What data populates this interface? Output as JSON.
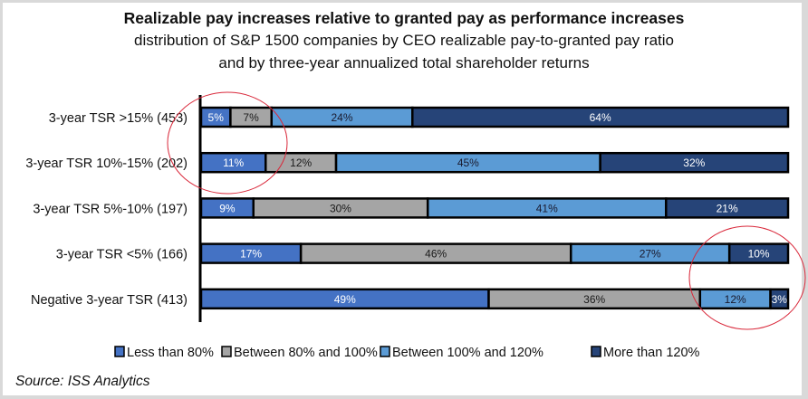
{
  "chart_data": {
    "type": "bar",
    "orientation": "horizontal",
    "stacked": true,
    "title": "Realizable pay increases relative to granted pay as performance increases",
    "subtitle_lines": [
      "distribution of S&P 1500 companies by CEO realizable pay-to-granted pay ratio",
      "and by three-year annualized total shareholder returns"
    ],
    "xlabel": "",
    "ylabel": "",
    "xlim": [
      0,
      100
    ],
    "grid": false,
    "legend_position": "bottom",
    "categories": [
      "3-year TSR >15% (453)",
      "3-year TSR 10%-15% (202)",
      "3-year TSR 5%-10% (197)",
      "3-year TSR <5% (166)",
      "Negative 3-year TSR (413)"
    ],
    "series": [
      {
        "name": "Less than 80%",
        "color": "#4472c4",
        "label_color": "#ffffff",
        "values": [
          5,
          11,
          9,
          17,
          49
        ]
      },
      {
        "name": "Between 80% and 100%",
        "color": "#a5a5a5",
        "label_color": "#1a1a1a",
        "values": [
          7,
          12,
          30,
          46,
          36
        ]
      },
      {
        "name": "Between 100% and 120%",
        "color": "#5b9bd5",
        "label_color": "#1a1a2e",
        "values": [
          24,
          45,
          41,
          27,
          12
        ]
      },
      {
        "name": "More than 120%",
        "color": "#264478",
        "label_color": "#ffffff",
        "values": [
          64,
          32,
          21,
          10,
          3
        ]
      }
    ],
    "value_suffix": "%",
    "annotations": [
      "red circle around top-left small segments",
      "red circle around bottom-right small segments"
    ],
    "annotation_color": "#d9283a"
  },
  "source": "Source: ISS Analytics"
}
